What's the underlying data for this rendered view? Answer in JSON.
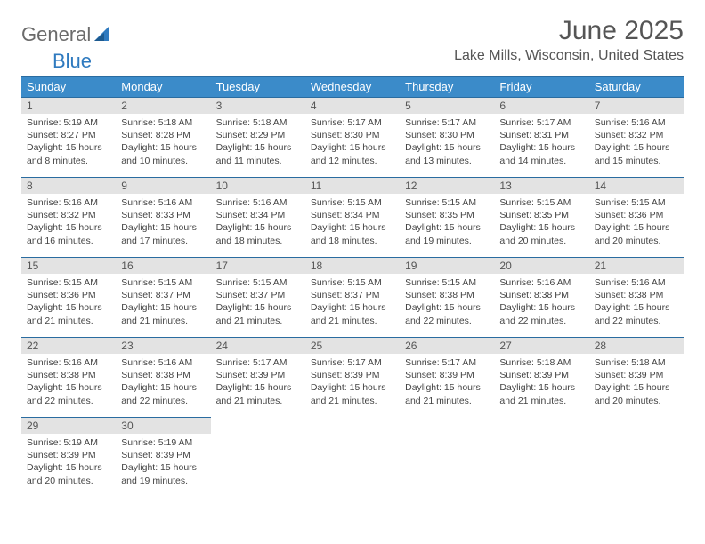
{
  "logo": {
    "word1": "General",
    "word2": "Blue"
  },
  "title": "June 2025",
  "location": "Lake Mills, Wisconsin, United States",
  "colors": {
    "header_bg": "#3b8bc9",
    "header_border": "#2a6ca0",
    "daynum_bg": "#e3e3e3",
    "text": "#444444",
    "title": "#555555"
  },
  "weekdays": [
    "Sunday",
    "Monday",
    "Tuesday",
    "Wednesday",
    "Thursday",
    "Friday",
    "Saturday"
  ],
  "weeks": [
    [
      {
        "n": "1",
        "sr": "Sunrise: 5:19 AM",
        "ss": "Sunset: 8:27 PM",
        "d1": "Daylight: 15 hours",
        "d2": "and 8 minutes."
      },
      {
        "n": "2",
        "sr": "Sunrise: 5:18 AM",
        "ss": "Sunset: 8:28 PM",
        "d1": "Daylight: 15 hours",
        "d2": "and 10 minutes."
      },
      {
        "n": "3",
        "sr": "Sunrise: 5:18 AM",
        "ss": "Sunset: 8:29 PM",
        "d1": "Daylight: 15 hours",
        "d2": "and 11 minutes."
      },
      {
        "n": "4",
        "sr": "Sunrise: 5:17 AM",
        "ss": "Sunset: 8:30 PM",
        "d1": "Daylight: 15 hours",
        "d2": "and 12 minutes."
      },
      {
        "n": "5",
        "sr": "Sunrise: 5:17 AM",
        "ss": "Sunset: 8:30 PM",
        "d1": "Daylight: 15 hours",
        "d2": "and 13 minutes."
      },
      {
        "n": "6",
        "sr": "Sunrise: 5:17 AM",
        "ss": "Sunset: 8:31 PM",
        "d1": "Daylight: 15 hours",
        "d2": "and 14 minutes."
      },
      {
        "n": "7",
        "sr": "Sunrise: 5:16 AM",
        "ss": "Sunset: 8:32 PM",
        "d1": "Daylight: 15 hours",
        "d2": "and 15 minutes."
      }
    ],
    [
      {
        "n": "8",
        "sr": "Sunrise: 5:16 AM",
        "ss": "Sunset: 8:32 PM",
        "d1": "Daylight: 15 hours",
        "d2": "and 16 minutes."
      },
      {
        "n": "9",
        "sr": "Sunrise: 5:16 AM",
        "ss": "Sunset: 8:33 PM",
        "d1": "Daylight: 15 hours",
        "d2": "and 17 minutes."
      },
      {
        "n": "10",
        "sr": "Sunrise: 5:16 AM",
        "ss": "Sunset: 8:34 PM",
        "d1": "Daylight: 15 hours",
        "d2": "and 18 minutes."
      },
      {
        "n": "11",
        "sr": "Sunrise: 5:15 AM",
        "ss": "Sunset: 8:34 PM",
        "d1": "Daylight: 15 hours",
        "d2": "and 18 minutes."
      },
      {
        "n": "12",
        "sr": "Sunrise: 5:15 AM",
        "ss": "Sunset: 8:35 PM",
        "d1": "Daylight: 15 hours",
        "d2": "and 19 minutes."
      },
      {
        "n": "13",
        "sr": "Sunrise: 5:15 AM",
        "ss": "Sunset: 8:35 PM",
        "d1": "Daylight: 15 hours",
        "d2": "and 20 minutes."
      },
      {
        "n": "14",
        "sr": "Sunrise: 5:15 AM",
        "ss": "Sunset: 8:36 PM",
        "d1": "Daylight: 15 hours",
        "d2": "and 20 minutes."
      }
    ],
    [
      {
        "n": "15",
        "sr": "Sunrise: 5:15 AM",
        "ss": "Sunset: 8:36 PM",
        "d1": "Daylight: 15 hours",
        "d2": "and 21 minutes."
      },
      {
        "n": "16",
        "sr": "Sunrise: 5:15 AM",
        "ss": "Sunset: 8:37 PM",
        "d1": "Daylight: 15 hours",
        "d2": "and 21 minutes."
      },
      {
        "n": "17",
        "sr": "Sunrise: 5:15 AM",
        "ss": "Sunset: 8:37 PM",
        "d1": "Daylight: 15 hours",
        "d2": "and 21 minutes."
      },
      {
        "n": "18",
        "sr": "Sunrise: 5:15 AM",
        "ss": "Sunset: 8:37 PM",
        "d1": "Daylight: 15 hours",
        "d2": "and 21 minutes."
      },
      {
        "n": "19",
        "sr": "Sunrise: 5:15 AM",
        "ss": "Sunset: 8:38 PM",
        "d1": "Daylight: 15 hours",
        "d2": "and 22 minutes."
      },
      {
        "n": "20",
        "sr": "Sunrise: 5:16 AM",
        "ss": "Sunset: 8:38 PM",
        "d1": "Daylight: 15 hours",
        "d2": "and 22 minutes."
      },
      {
        "n": "21",
        "sr": "Sunrise: 5:16 AM",
        "ss": "Sunset: 8:38 PM",
        "d1": "Daylight: 15 hours",
        "d2": "and 22 minutes."
      }
    ],
    [
      {
        "n": "22",
        "sr": "Sunrise: 5:16 AM",
        "ss": "Sunset: 8:38 PM",
        "d1": "Daylight: 15 hours",
        "d2": "and 22 minutes."
      },
      {
        "n": "23",
        "sr": "Sunrise: 5:16 AM",
        "ss": "Sunset: 8:38 PM",
        "d1": "Daylight: 15 hours",
        "d2": "and 22 minutes."
      },
      {
        "n": "24",
        "sr": "Sunrise: 5:17 AM",
        "ss": "Sunset: 8:39 PM",
        "d1": "Daylight: 15 hours",
        "d2": "and 21 minutes."
      },
      {
        "n": "25",
        "sr": "Sunrise: 5:17 AM",
        "ss": "Sunset: 8:39 PM",
        "d1": "Daylight: 15 hours",
        "d2": "and 21 minutes."
      },
      {
        "n": "26",
        "sr": "Sunrise: 5:17 AM",
        "ss": "Sunset: 8:39 PM",
        "d1": "Daylight: 15 hours",
        "d2": "and 21 minutes."
      },
      {
        "n": "27",
        "sr": "Sunrise: 5:18 AM",
        "ss": "Sunset: 8:39 PM",
        "d1": "Daylight: 15 hours",
        "d2": "and 21 minutes."
      },
      {
        "n": "28",
        "sr": "Sunrise: 5:18 AM",
        "ss": "Sunset: 8:39 PM",
        "d1": "Daylight: 15 hours",
        "d2": "and 20 minutes."
      }
    ],
    [
      {
        "n": "29",
        "sr": "Sunrise: 5:19 AM",
        "ss": "Sunset: 8:39 PM",
        "d1": "Daylight: 15 hours",
        "d2": "and 20 minutes."
      },
      {
        "n": "30",
        "sr": "Sunrise: 5:19 AM",
        "ss": "Sunset: 8:39 PM",
        "d1": "Daylight: 15 hours",
        "d2": "and 19 minutes."
      },
      null,
      null,
      null,
      null,
      null
    ]
  ]
}
